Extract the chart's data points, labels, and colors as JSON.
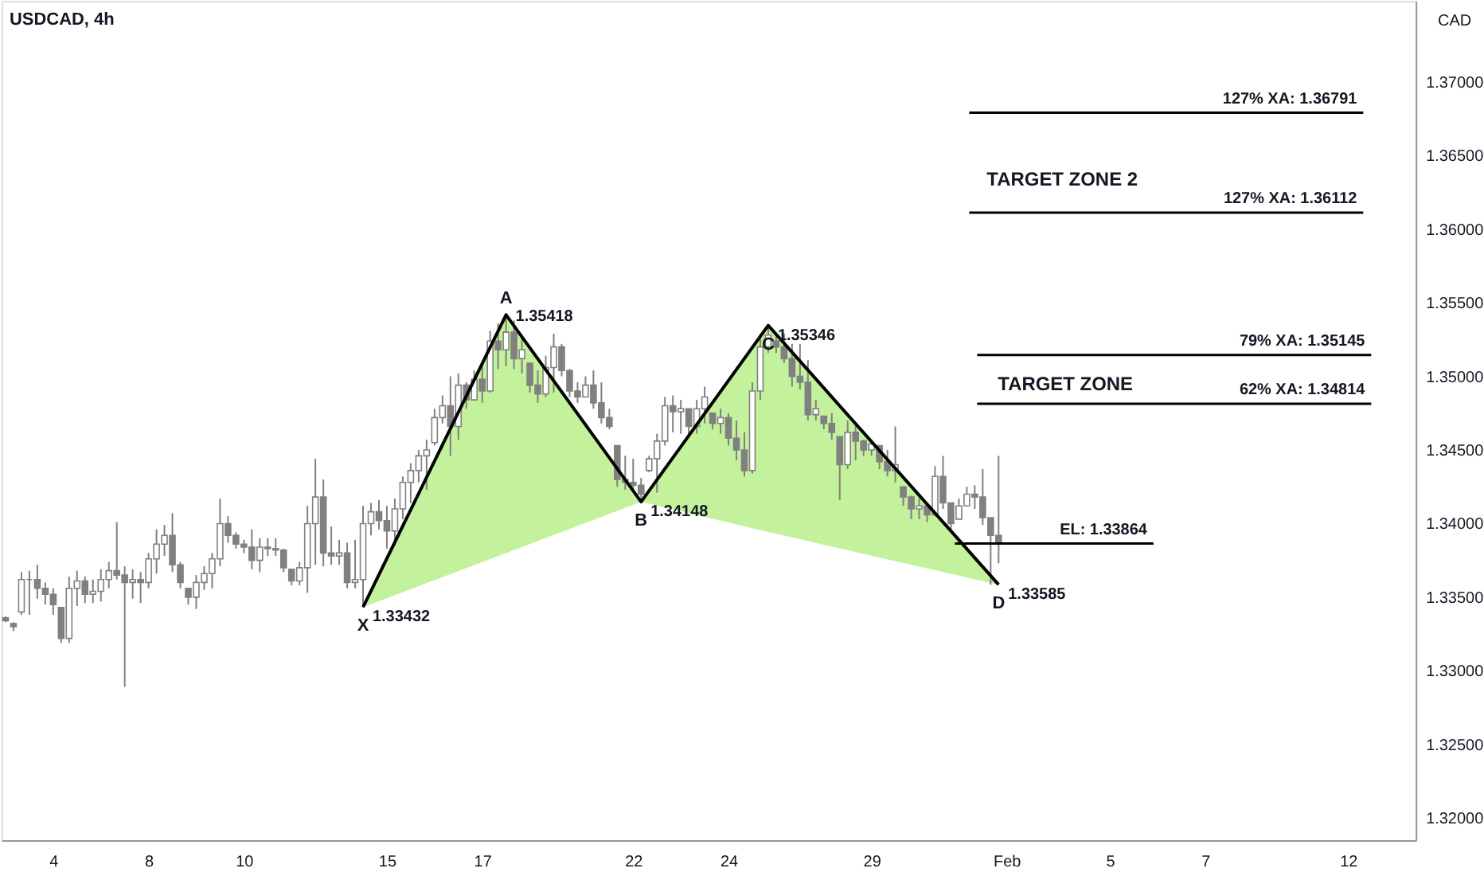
{
  "chart_data": {
    "type": "candlestick",
    "title": "USDCAD, 4h",
    "ylabel": "CAD",
    "color": "#808080",
    "categories": [
      null,
      null,
      null,
      null,
      null,
      null,
      "4",
      null,
      null,
      null,
      null,
      null,
      null,
      null,
      null,
      null,
      null,
      null,
      "8",
      null,
      null,
      null,
      null,
      null,
      null,
      null,
      null,
      null,
      null,
      null,
      "10",
      null,
      null,
      null,
      null,
      null,
      null,
      null,
      null,
      null,
      null,
      null,
      null,
      null,
      null,
      null,
      null,
      null,
      "15",
      null,
      null,
      null,
      null,
      null,
      null,
      null,
      null,
      null,
      null,
      null,
      "17",
      null,
      null,
      null,
      null,
      null,
      null,
      null,
      null,
      null,
      null,
      null,
      null,
      null,
      null,
      null,
      null,
      null,
      null,
      "22",
      null,
      null,
      null,
      null,
      null,
      null,
      null,
      null,
      null,
      null,
      null,
      "24",
      null,
      null,
      null,
      null,
      null,
      null,
      null,
      null,
      null,
      null,
      null,
      null,
      null,
      null,
      null,
      null,
      null,
      "29",
      null,
      null,
      null,
      null,
      null,
      null,
      null,
      null,
      null,
      null,
      null,
      null,
      null,
      null,
      null,
      null,
      "Feb",
      null,
      null,
      null,
      null,
      null,
      null,
      null,
      null,
      null,
      null,
      null,
      null,
      "5",
      null,
      null,
      null,
      null,
      null,
      null,
      null,
      null,
      null,
      null,
      null,
      "7",
      null,
      null,
      null,
      null,
      null,
      null,
      null,
      null,
      null,
      null,
      null,
      null,
      null,
      null,
      null,
      null,
      null,
      "12",
      null,
      null,
      null,
      null,
      null,
      null,
      null,
      null
    ],
    "ohlc": [
      [
        1.3336,
        1.3337,
        1.3333,
        1.3334
      ],
      [
        1.3332,
        1.3333,
        1.3327,
        1.333
      ],
      [
        1.334,
        1.3367,
        1.3338,
        1.3362
      ],
      [
        1.3362,
        1.3368,
        1.3338,
        1.3362
      ],
      [
        1.3362,
        1.3372,
        1.3349,
        1.3356
      ],
      [
        1.3356,
        1.336,
        1.3345,
        1.3352
      ],
      [
        1.3352,
        1.3356,
        1.3338,
        1.3345
      ],
      [
        1.3343,
        1.3343,
        1.3319,
        1.3322
      ],
      [
        1.3322,
        1.3364,
        1.3319,
        1.3356
      ],
      [
        1.3356,
        1.3368,
        1.3344,
        1.3361
      ],
      [
        1.3361,
        1.3364,
        1.3346,
        1.3352
      ],
      [
        1.3352,
        1.3362,
        1.3346,
        1.3354
      ],
      [
        1.3354,
        1.3369,
        1.3347,
        1.3362
      ],
      [
        1.3362,
        1.3374,
        1.3356,
        1.3368
      ],
      [
        1.3368,
        1.3401,
        1.3362,
        1.3365
      ],
      [
        1.3365,
        1.3371,
        1.3289,
        1.336
      ],
      [
        1.336,
        1.3369,
        1.3349,
        1.3362
      ],
      [
        1.3362,
        1.3367,
        1.3346,
        1.336
      ],
      [
        1.336,
        1.338,
        1.3356,
        1.3376
      ],
      [
        1.3376,
        1.3396,
        1.3366,
        1.3386
      ],
      [
        1.3386,
        1.3399,
        1.3378,
        1.3392
      ],
      [
        1.3392,
        1.3407,
        1.3367,
        1.3372
      ],
      [
        1.3372,
        1.3374,
        1.3356,
        1.336
      ],
      [
        1.3356,
        1.3356,
        1.3345,
        1.335
      ],
      [
        1.335,
        1.3365,
        1.3342,
        1.336
      ],
      [
        1.336,
        1.3371,
        1.3355,
        1.3366
      ],
      [
        1.3366,
        1.338,
        1.3356,
        1.3376
      ],
      [
        1.3376,
        1.3417,
        1.3371,
        1.34
      ],
      [
        1.34,
        1.3405,
        1.3387,
        1.3392
      ],
      [
        1.3392,
        1.3394,
        1.3383,
        1.3386
      ],
      [
        1.3386,
        1.3389,
        1.338,
        1.3384
      ],
      [
        1.3384,
        1.3396,
        1.3369,
        1.3375
      ],
      [
        1.3375,
        1.339,
        1.3367,
        1.3384
      ],
      [
        1.3384,
        1.339,
        1.3378,
        1.3383
      ],
      [
        1.3383,
        1.339,
        1.3378,
        1.3382
      ],
      [
        1.3382,
        1.3383,
        1.3367,
        1.337
      ],
      [
        1.3369,
        1.3369,
        1.3358,
        1.3361
      ],
      [
        1.3361,
        1.3374,
        1.3358,
        1.337
      ],
      [
        1.337,
        1.3412,
        1.3353,
        1.34
      ],
      [
        1.34,
        1.3444,
        1.3372,
        1.3418
      ],
      [
        1.3418,
        1.343,
        1.3371,
        1.338
      ],
      [
        1.338,
        1.3398,
        1.3372,
        1.3378
      ],
      [
        1.3378,
        1.3389,
        1.3372,
        1.338
      ],
      [
        1.338,
        1.3387,
        1.3356,
        1.336
      ],
      [
        1.336,
        1.3389,
        1.3356,
        1.3362
      ],
      [
        1.3362,
        1.3412,
        1.33432,
        1.34
      ],
      [
        1.34,
        1.3414,
        1.3392,
        1.3408
      ],
      [
        1.3408,
        1.3416,
        1.3396,
        1.3402
      ],
      [
        1.3402,
        1.3412,
        1.3383,
        1.3395
      ],
      [
        1.3395,
        1.3417,
        1.3385,
        1.341
      ],
      [
        1.341,
        1.3432,
        1.3403,
        1.3428
      ],
      [
        1.3428,
        1.3441,
        1.3414,
        1.3436
      ],
      [
        1.3436,
        1.345,
        1.3428,
        1.3446
      ],
      [
        1.3446,
        1.3457,
        1.3423,
        1.345
      ],
      [
        1.3455,
        1.3478,
        1.3453,
        1.3472
      ],
      [
        1.3472,
        1.3487,
        1.3468,
        1.348
      ],
      [
        1.348,
        1.35,
        1.3446,
        1.3466
      ],
      [
        1.3466,
        1.3502,
        1.3457,
        1.3494
      ],
      [
        1.3494,
        1.3496,
        1.3478,
        1.3484
      ],
      [
        1.3484,
        1.3504,
        1.3484,
        1.3498
      ],
      [
        1.3498,
        1.3507,
        1.3482,
        1.349
      ],
      [
        1.349,
        1.3531,
        1.3489,
        1.3524
      ],
      [
        1.3524,
        1.3536,
        1.3505,
        1.3518
      ],
      [
        1.3518,
        1.35418,
        1.3507,
        1.353
      ],
      [
        1.353,
        1.3538,
        1.3505,
        1.3512
      ],
      [
        1.3512,
        1.3527,
        1.3502,
        1.3518
      ],
      [
        1.3509,
        1.3509,
        1.3489,
        1.3494
      ],
      [
        1.3494,
        1.3504,
        1.3482,
        1.3488
      ],
      [
        1.3488,
        1.3514,
        1.3486,
        1.3506
      ],
      [
        1.3506,
        1.3529,
        1.3489,
        1.352
      ],
      [
        1.352,
        1.3522,
        1.35,
        1.3504
      ],
      [
        1.3504,
        1.3505,
        1.3486,
        1.349
      ],
      [
        1.349,
        1.3496,
        1.3482,
        1.3486
      ],
      [
        1.3486,
        1.35,
        1.3486,
        1.3494
      ],
      [
        1.3494,
        1.3504,
        1.3478,
        1.3482
      ],
      [
        1.3482,
        1.3496,
        1.3468,
        1.3472
      ],
      [
        1.3472,
        1.3478,
        1.3464,
        1.3466
      ],
      [
        1.3453,
        1.3453,
        1.3425,
        1.343
      ],
      [
        1.343,
        1.3446,
        1.3423,
        1.3428
      ],
      [
        1.3428,
        1.3444,
        1.3423,
        1.3426
      ],
      [
        1.3426,
        1.3431,
        1.34148,
        1.342
      ],
      [
        1.3436,
        1.3446,
        1.3435,
        1.3444
      ],
      [
        1.3444,
        1.3461,
        1.3421,
        1.3456
      ],
      [
        1.3456,
        1.3486,
        1.3453,
        1.348
      ],
      [
        1.348,
        1.3487,
        1.3462,
        1.3476
      ],
      [
        1.3476,
        1.3484,
        1.3461,
        1.3478
      ],
      [
        1.3478,
        1.3478,
        1.3459,
        1.3466
      ],
      [
        1.3466,
        1.3484,
        1.3461,
        1.3478
      ],
      [
        1.3478,
        1.3493,
        1.3468,
        1.3486
      ],
      [
        1.3475,
        1.3475,
        1.3464,
        1.3468
      ],
      [
        1.3468,
        1.3478,
        1.3461,
        1.3472
      ],
      [
        1.3472,
        1.3475,
        1.3453,
        1.3458
      ],
      [
        1.3458,
        1.347,
        1.3443,
        1.345
      ],
      [
        1.345,
        1.3462,
        1.3432,
        1.3436
      ],
      [
        1.3436,
        1.3496,
        1.3434,
        1.349
      ],
      [
        1.349,
        1.3529,
        1.3484,
        1.352
      ],
      [
        1.352,
        1.35346,
        1.3516,
        1.3528
      ],
      [
        1.3524,
        1.3527,
        1.3516,
        1.352
      ],
      [
        1.352,
        1.3529,
        1.3509,
        1.3512
      ],
      [
        1.3512,
        1.3522,
        1.3493,
        1.35
      ],
      [
        1.35,
        1.3522,
        1.3491,
        1.3496
      ],
      [
        1.3496,
        1.3511,
        1.347,
        1.3474
      ],
      [
        1.3474,
        1.3484,
        1.347,
        1.3478
      ],
      [
        1.3473,
        1.3473,
        1.3464,
        1.3468
      ],
      [
        1.3468,
        1.3475,
        1.3457,
        1.3462
      ],
      [
        1.3459,
        1.3459,
        1.3416,
        1.344
      ],
      [
        1.344,
        1.347,
        1.3437,
        1.3462
      ],
      [
        1.3462,
        1.3468,
        1.3443,
        1.3456
      ],
      [
        1.3456,
        1.3457,
        1.3446,
        1.345
      ],
      [
        1.345,
        1.3457,
        1.3446,
        1.3454
      ],
      [
        1.3453,
        1.3453,
        1.3437,
        1.3442
      ],
      [
        1.3442,
        1.345,
        1.3432,
        1.3436
      ],
      [
        1.3436,
        1.3466,
        1.3428,
        1.344
      ],
      [
        1.3425,
        1.3425,
        1.3412,
        1.3418
      ],
      [
        1.3418,
        1.3419,
        1.3403,
        1.341
      ],
      [
        1.341,
        1.3417,
        1.3403,
        1.3412
      ],
      [
        1.3412,
        1.3414,
        1.3401,
        1.3406
      ],
      [
        1.3406,
        1.3439,
        1.3405,
        1.3432
      ],
      [
        1.3432,
        1.3446,
        1.341,
        1.3414
      ],
      [
        1.3414,
        1.3414,
        1.3396,
        1.34
      ],
      [
        1.3403,
        1.3417,
        1.3403,
        1.3412
      ],
      [
        1.3412,
        1.3425,
        1.3412,
        1.342
      ],
      [
        1.342,
        1.3426,
        1.341,
        1.3418
      ],
      [
        1.3418,
        1.3437,
        1.3399,
        1.3404
      ],
      [
        1.3404,
        1.3404,
        1.33585,
        1.3392
      ],
      [
        1.3392,
        1.3446,
        1.3373,
        1.3386
      ],
      null,
      null,
      null,
      null,
      null,
      null,
      null,
      null,
      null,
      null,
      null,
      null,
      null,
      null,
      null,
      null,
      null,
      null,
      null,
      null,
      null,
      null,
      null,
      null,
      null,
      null,
      null,
      null,
      null,
      null,
      null,
      null,
      null,
      null,
      null,
      null,
      null,
      null,
      null,
      null,
      null,
      null,
      null,
      null,
      null,
      null,
      null,
      null,
      null,
      null,
      null,
      null
    ],
    "series": [
      {
        "type": "line",
        "color": "#000000",
        "upper": [
          null,
          null,
          null,
          null,
          null,
          null,
          null,
          null,
          null,
          null,
          null,
          null,
          null,
          null,
          null,
          null,
          null,
          null,
          null,
          null,
          null,
          null,
          null,
          null,
          null,
          null,
          null,
          null,
          null,
          null,
          null,
          null,
          null,
          null,
          null,
          null,
          null,
          null,
          null,
          null,
          null,
          null,
          null,
          null,
          null,
          1.33432,
          null,
          null,
          null,
          null,
          null,
          null,
          null,
          null,
          null,
          null,
          null,
          null,
          null,
          null,
          null,
          null,
          null,
          1.35418,
          null,
          null,
          null,
          null,
          null,
          null,
          null,
          null,
          null,
          null,
          null,
          null,
          null,
          null,
          null,
          null,
          1.34148,
          null,
          null,
          null,
          null,
          null,
          null,
          null,
          null,
          null,
          null,
          null,
          null,
          null,
          null,
          null,
          1.35346,
          null,
          null,
          null,
          null,
          null,
          null,
          null,
          null,
          null,
          null,
          null,
          null,
          null,
          null,
          null,
          null,
          null,
          null,
          null,
          null,
          null,
          null,
          null,
          null,
          null,
          null,
          null,
          null,
          1.33585,
          null,
          null,
          null,
          null,
          null,
          null,
          null,
          null,
          null,
          null,
          null,
          null,
          null,
          null,
          null,
          null,
          null,
          null,
          null,
          null,
          null,
          null,
          null,
          null,
          null,
          null,
          null,
          null,
          null,
          null,
          null,
          null,
          null,
          null,
          null,
          null,
          null,
          null,
          null,
          null,
          null,
          null,
          null,
          null,
          null,
          null,
          null,
          null,
          null,
          null,
          null,
          null
        ],
        "lower": [
          null,
          null,
          null,
          null,
          null,
          null,
          null,
          null,
          null,
          null,
          null,
          null,
          null,
          null,
          null,
          null,
          null,
          null,
          null,
          null,
          null,
          null,
          null,
          null,
          null,
          null,
          null,
          null,
          null,
          null,
          null,
          null,
          null,
          null,
          null,
          null,
          null,
          null,
          null,
          null,
          null,
          null,
          null,
          null,
          null,
          1.33432,
          null,
          null,
          null,
          null,
          null,
          null,
          null,
          null,
          null,
          null,
          null,
          null,
          null,
          null,
          null,
          null,
          null,
          1.338,
          null,
          null,
          null,
          null,
          null,
          null,
          null,
          null,
          null,
          null,
          null,
          null,
          null,
          null,
          null,
          null,
          1.34148,
          null,
          null,
          null,
          null,
          null,
          null,
          null,
          null,
          null,
          null,
          null,
          null,
          null,
          null,
          null,
          1.33943,
          null,
          null,
          null,
          null,
          null,
          null,
          null,
          null,
          null,
          null,
          null,
          null,
          null,
          null,
          null,
          null,
          null,
          null,
          null,
          null,
          null,
          null,
          null,
          null,
          null,
          null,
          null,
          null,
          1.33585,
          null,
          null,
          null,
          null,
          null,
          null,
          null,
          null,
          null,
          null,
          null,
          null,
          null,
          null,
          null,
          null,
          null,
          null,
          null,
          null,
          null,
          null,
          null,
          null,
          null,
          null,
          null,
          null,
          null,
          null,
          null,
          null,
          null,
          null,
          null,
          null,
          null,
          null,
          null,
          null,
          null,
          null,
          null,
          null,
          null,
          null,
          null,
          null,
          null,
          null,
          null,
          null
        ],
        "values": [
          null,
          null,
          null,
          null,
          null,
          null,
          null,
          null,
          null,
          null,
          null,
          null,
          null,
          null,
          null,
          null,
          null,
          null,
          null,
          null,
          null,
          null,
          null,
          null,
          null,
          null,
          null,
          null,
          null,
          null,
          null,
          null,
          null,
          null,
          null,
          null,
          null,
          null,
          null,
          null,
          null,
          null,
          null,
          null,
          null,
          1.33432,
          null,
          null,
          null,
          null,
          null,
          null,
          null,
          null,
          null,
          null,
          null,
          null,
          null,
          null,
          null,
          null,
          null,
          1.35418,
          null,
          null,
          null,
          null,
          null,
          null,
          null,
          null,
          null,
          null,
          null,
          null,
          null,
          null,
          null,
          null,
          1.34148,
          null,
          null,
          null,
          null,
          null,
          null,
          null,
          null,
          null,
          null,
          null,
          null,
          null,
          null,
          null,
          1.35346,
          null,
          null,
          null,
          null,
          null,
          null,
          null,
          null,
          null,
          null,
          null,
          null,
          null,
          null,
          null,
          null,
          null,
          null,
          null,
          null,
          null,
          null,
          null,
          null,
          null,
          null,
          null,
          null,
          1.33585,
          null,
          null,
          null,
          null,
          null,
          null,
          null,
          null,
          null,
          null,
          null,
          null,
          null,
          null,
          null,
          null,
          null,
          null,
          null,
          null,
          null,
          null,
          null,
          null,
          null,
          null,
          null,
          null,
          null,
          null,
          null,
          null,
          null,
          null,
          null,
          null,
          null,
          null,
          null,
          null,
          null,
          null,
          null,
          null,
          null,
          null,
          null,
          null,
          null,
          null,
          null,
          null
        ],
        "value_labels": [
          null,
          null,
          null,
          null,
          null,
          null,
          null,
          null,
          null,
          null,
          null,
          null,
          null,
          null,
          null,
          null,
          null,
          null,
          null,
          null,
          null,
          null,
          null,
          null,
          null,
          null,
          null,
          null,
          null,
          null,
          null,
          null,
          null,
          null,
          null,
          null,
          null,
          null,
          null,
          null,
          null,
          null,
          null,
          null,
          null,
          "1.33432",
          null,
          null,
          null,
          null,
          null,
          null,
          null,
          null,
          null,
          null,
          null,
          null,
          null,
          null,
          null,
          null,
          null,
          "1.35418",
          null,
          null,
          null,
          null,
          null,
          null,
          null,
          null,
          null,
          null,
          null,
          null,
          null,
          null,
          null,
          null,
          "1.34148",
          null,
          null,
          null,
          null,
          null,
          null,
          null,
          null,
          null,
          null,
          null,
          null,
          null,
          null,
          null,
          "1.35346",
          null,
          null,
          null,
          null,
          null,
          null,
          null,
          null,
          null,
          null,
          null,
          null,
          null,
          null,
          null,
          null,
          null,
          null,
          null,
          null,
          null,
          null,
          null,
          null,
          null,
          null,
          null,
          null,
          "1.33585",
          null,
          null,
          null,
          null,
          null,
          null,
          null,
          null,
          null,
          null,
          null,
          null,
          null,
          null,
          null,
          null,
          null,
          null,
          null,
          null,
          null,
          null,
          null,
          null,
          null,
          null,
          null,
          null,
          null,
          null,
          null,
          null,
          null,
          null,
          null,
          null,
          null,
          null,
          null,
          null,
          null,
          null,
          null,
          null,
          null,
          null,
          null,
          null,
          null,
          null,
          null,
          null
        ]
      }
    ],
    "annotations": [
      {
        "text": "X",
        "y": 1.33432
      },
      {
        "text": "A",
        "y": 1.35418
      },
      {
        "text": "B",
        "y": 1.34148
      },
      {
        "text": "C",
        "y": 1.35346
      },
      {
        "text": "D",
        "y": 1.33585
      },
      "TARGET ZONE 2",
      "TARGET ZONE"
    ],
    "ref_lines": [
      {
        "axis": "y",
        "value": 1.36791,
        "label": "127% XA: 1.36791",
        "color": "#000000"
      },
      {
        "axis": "y",
        "value": 1.36112,
        "label": "127% XA: 1.36112",
        "color": "#000000"
      },
      {
        "axis": "y",
        "value": 1.35145,
        "label": "79% XA: 1.35145",
        "color": "#000000"
      },
      {
        "axis": "y",
        "value": 1.34814,
        "label": "62% XA: 1.34814",
        "color": "#000000"
      },
      {
        "axis": "y",
        "value": 1.33864,
        "label": "EL: 1.33864",
        "color": "#000000"
      }
    ],
    "ylim": [
      1.3185,
      1.3755
    ],
    "yticks": [
      {
        "value": 1.32,
        "label": "1.32000"
      },
      {
        "value": 1.325,
        "label": "1.32500"
      },
      {
        "value": 1.33,
        "label": "1.33000"
      },
      {
        "value": 1.335,
        "label": "1.33500"
      },
      {
        "value": 1.34,
        "label": "1.34000"
      },
      {
        "value": 1.345,
        "label": "1.34500"
      },
      {
        "value": 1.35,
        "label": "1.35000"
      },
      {
        "value": 1.355,
        "label": "1.35500"
      },
      {
        "value": 1.36,
        "label": "1.36000"
      },
      {
        "value": 1.365,
        "label": "1.36500"
      },
      {
        "value": 1.37,
        "label": "1.37000"
      }
    ]
  }
}
